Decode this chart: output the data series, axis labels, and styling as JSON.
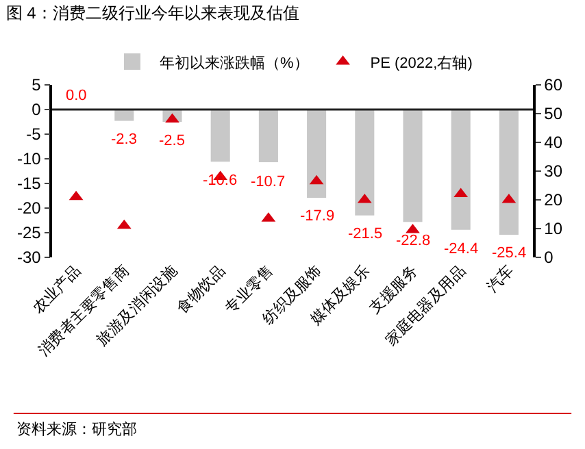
{
  "chart_data": {
    "type": "bar",
    "title": "图 4：消费二级行业今年以来表现及估值",
    "categories": [
      "农业产品",
      "消费者主要零售商",
      "旅游及消闲设施",
      "食物饮品",
      "专业零售",
      "纺织及服饰",
      "媒体及娱乐",
      "支援服务",
      "家庭电器及用品",
      "汽车"
    ],
    "series": [
      {
        "name": "年初以来涨跌幅（%）",
        "type": "bar",
        "color": "#c8c8c8",
        "values": [
          0.0,
          -2.3,
          -2.5,
          -10.6,
          -10.7,
          -17.9,
          -21.5,
          -22.8,
          -24.4,
          -25.4
        ],
        "value_labels": [
          "0.0",
          "-2.3",
          "-2.5",
          "-10.6",
          "-10.7",
          "-17.9",
          "-21.5",
          "-22.8",
          "-24.4",
          "-25.4"
        ]
      },
      {
        "name": "PE (2022,右轴)",
        "type": "scatter",
        "axis": "y2",
        "color": "#d7000f",
        "marker": "triangle",
        "values": [
          21,
          11,
          48,
          28,
          13.5,
          26.5,
          20,
          9.5,
          22,
          20
        ]
      }
    ],
    "ylim": [
      -30,
      5
    ],
    "yticks": [
      -30,
      -25,
      -20,
      -15,
      -10,
      -5,
      0,
      5
    ],
    "y2lim": [
      0,
      60
    ],
    "y2ticks": [
      0,
      10,
      20,
      30,
      40,
      50,
      60
    ],
    "grid": false,
    "legend": "top",
    "ref_lines": [
      {
        "axis": "y",
        "value": 0,
        "color": "#222222"
      }
    ],
    "annotations": [
      "资料来源：研究部"
    ]
  }
}
